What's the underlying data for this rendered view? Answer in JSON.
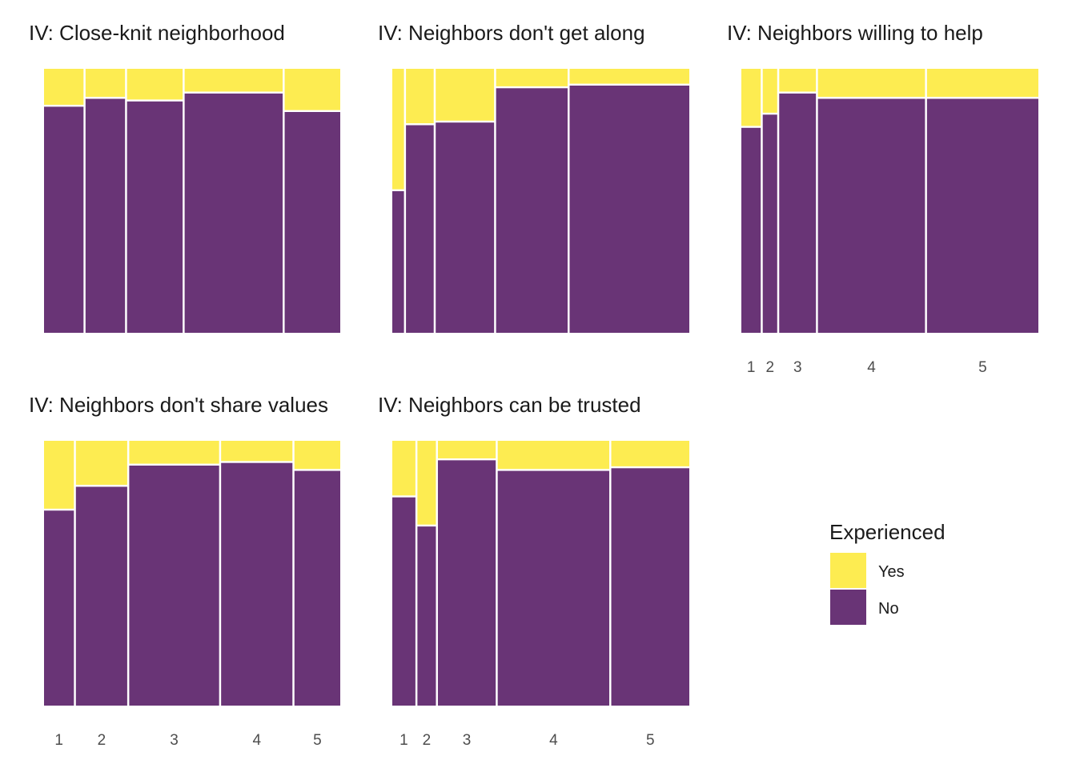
{
  "chart_data": {
    "type": "mosaic",
    "categories": [
      "1",
      "2",
      "3",
      "4",
      "5"
    ],
    "ylim": [
      0,
      1
    ],
    "grid": false,
    "legend": {
      "title": "Experienced",
      "position": "right",
      "entries": [
        {
          "label": "Yes",
          "color": "#FDE725"
        },
        {
          "label": "No",
          "color": "#440154"
        }
      ]
    },
    "colors": {
      "Yes": "#FDE725",
      "No": "#440154",
      "no_alpha": 0.8
    },
    "panels": [
      {
        "title": "IV: Close-knit neighborhood",
        "show_x_ticks": false,
        "col_weights": [
          0.135,
          0.135,
          0.19,
          0.335,
          0.19
        ],
        "yes_share": [
          0.14,
          0.11,
          0.12,
          0.09,
          0.16
        ]
      },
      {
        "title": "IV: Neighbors don't get along",
        "show_x_ticks": false,
        "col_weights": [
          0.04,
          0.095,
          0.2,
          0.245,
          0.41
        ],
        "yes_share": [
          0.46,
          0.21,
          0.2,
          0.07,
          0.06
        ]
      },
      {
        "title": "IV: Neighbors willing to help",
        "show_x_ticks": true,
        "col_weights": [
          0.067,
          0.05,
          0.127,
          0.37,
          0.385
        ],
        "yes_share": [
          0.22,
          0.17,
          0.09,
          0.11,
          0.11
        ]
      },
      {
        "title": "IV: Neighbors don't share values",
        "show_x_ticks": true,
        "col_weights": [
          0.103,
          0.177,
          0.31,
          0.246,
          0.158
        ],
        "yes_share": [
          0.26,
          0.17,
          0.09,
          0.08,
          0.11
        ]
      },
      {
        "title": "IV: Neighbors can be trusted",
        "show_x_ticks": true,
        "col_weights": [
          0.08,
          0.064,
          0.2,
          0.386,
          0.27
        ],
        "yes_share": [
          0.21,
          0.32,
          0.07,
          0.11,
          0.1
        ]
      }
    ]
  }
}
